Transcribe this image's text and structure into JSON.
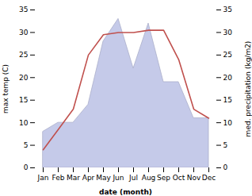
{
  "chart_data": {
    "type": "line",
    "categories": [
      "Jan",
      "Feb",
      "Mar",
      "Apr",
      "May",
      "Jun",
      "Jul",
      "Aug",
      "Sep",
      "Oct",
      "Nov",
      "Dec"
    ],
    "xlabel": "date (month)",
    "ylabel": "max temp (C)",
    "y2label": "med. precipitation (kg/m2)",
    "ylim": [
      0,
      35
    ],
    "yticks": [
      0,
      5,
      10,
      15,
      20,
      25,
      30,
      35
    ],
    "y2lim": [
      0,
      35
    ],
    "y2ticks": [
      0,
      5,
      10,
      15,
      20,
      25,
      30,
      35
    ],
    "series": [
      {
        "name": "med. precipitation (kg/m2)",
        "type": "area",
        "axis": "y2",
        "color": "#c5cae9",
        "values": [
          8,
          10,
          10,
          14,
          28,
          33,
          22,
          32,
          19,
          19,
          11,
          11
        ]
      },
      {
        "name": "max temp (C)",
        "type": "line",
        "color": "#c0504d",
        "values": [
          4,
          8.5,
          13,
          25,
          29.5,
          30,
          30,
          30.5,
          30.5,
          24,
          13,
          11
        ]
      }
    ]
  }
}
